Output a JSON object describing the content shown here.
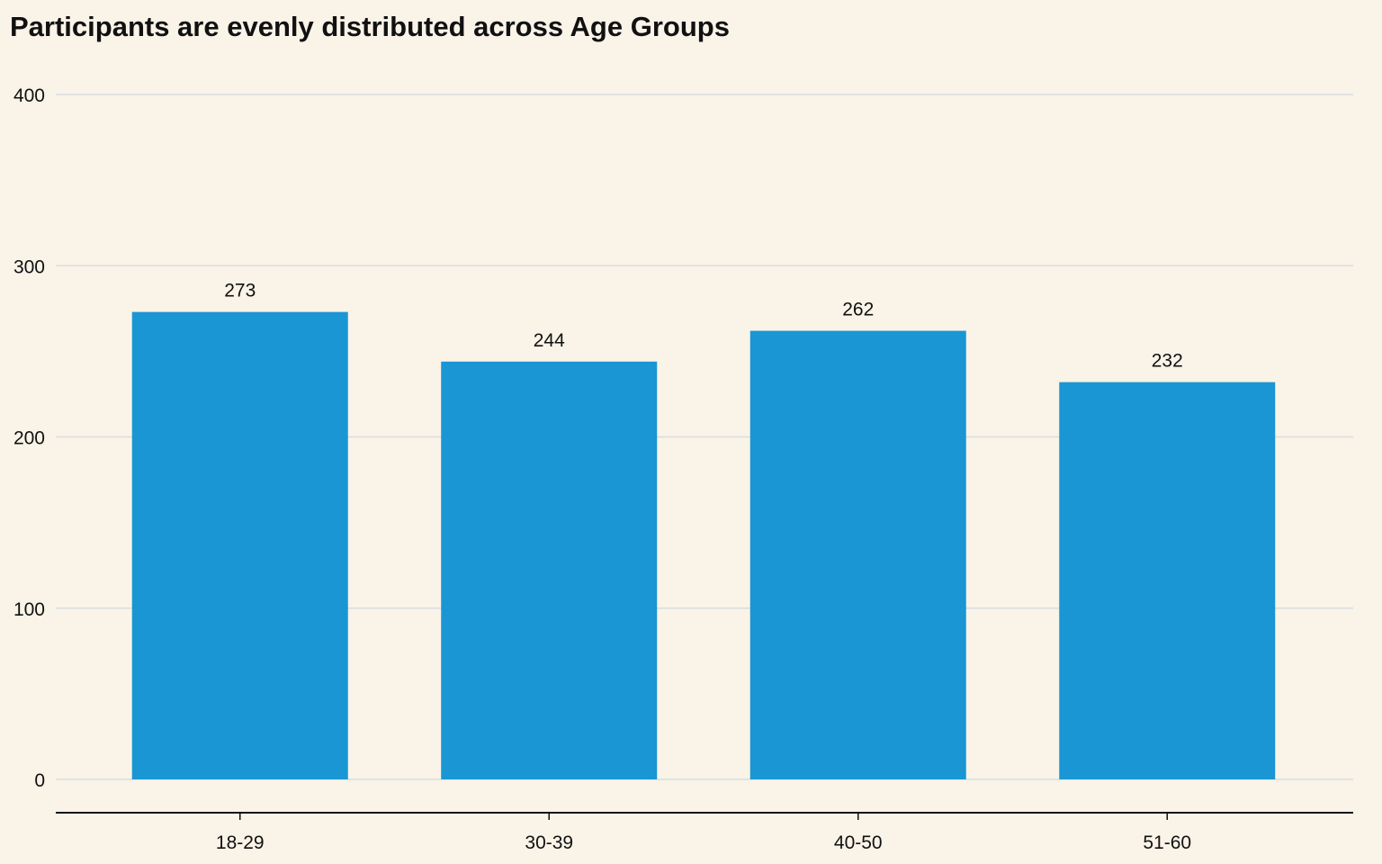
{
  "chart_data": {
    "type": "bar",
    "title": "Participants are evenly distributed across Age Groups",
    "xlabel": "",
    "ylabel": "",
    "categories": [
      "18-29",
      "30-39",
      "40-50",
      "51-60"
    ],
    "values": [
      273,
      244,
      262,
      232
    ],
    "ylim": [
      0,
      400
    ],
    "yticks": [
      0,
      100,
      200,
      300,
      400
    ],
    "grid": true,
    "legend": "none",
    "bar_color": "#1996d3",
    "grid_color": "#d9dde0",
    "axis_color": "#111111",
    "background_color": "#f9f3e8"
  }
}
